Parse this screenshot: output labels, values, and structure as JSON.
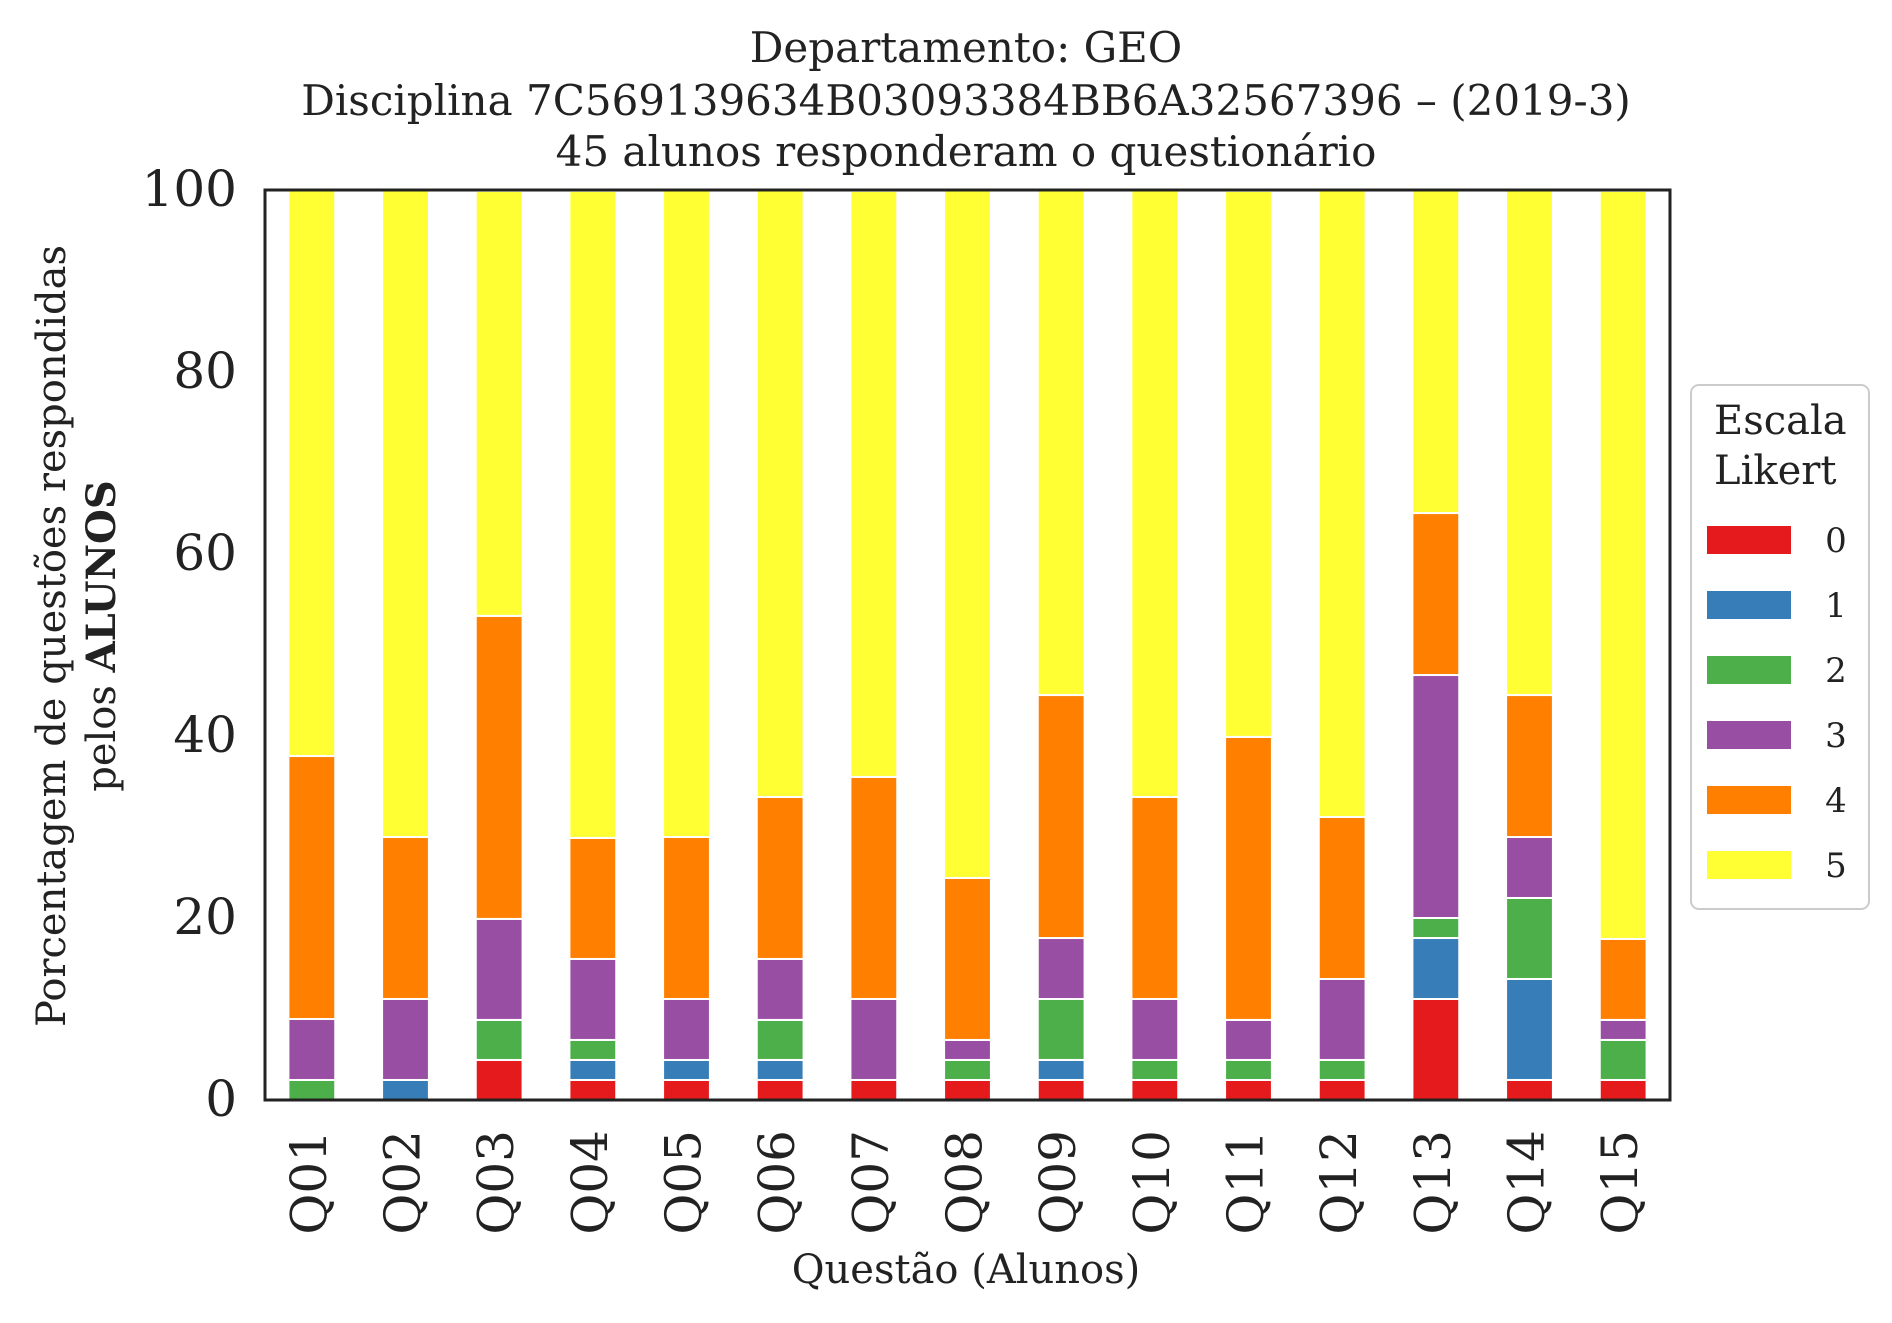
{
  "chart_data": {
    "type": "bar",
    "stacked": true,
    "title_lines": [
      "Departamento: GEO",
      "Disciplina 7C569139634B03093384BB6A32567396 – (2019-3)",
      "45 alunos responderam o questionário"
    ],
    "xlabel": "Questão (Alunos)",
    "ylabel_line1": "Porcentagem de questões respondidas",
    "ylabel_line2_prefix": "pelos ",
    "ylabel_line2_bold": "ALUNOS",
    "ylim": [
      0,
      100
    ],
    "yticks": [
      "0",
      "20",
      "40",
      "60",
      "80",
      "100"
    ],
    "categories": [
      "Q01",
      "Q02",
      "Q03",
      "Q04",
      "Q05",
      "Q06",
      "Q07",
      "Q08",
      "Q09",
      "Q10",
      "Q11",
      "Q12",
      "Q13",
      "Q14",
      "Q15"
    ],
    "legend": {
      "title_line1": "Escala",
      "title_line2": "Likert",
      "placement": "right"
    },
    "series": [
      {
        "name": "0",
        "color": "#e41a1c",
        "values": [
          0,
          0,
          4.4,
          2.2,
          2.2,
          2.2,
          2.2,
          2.2,
          2.2,
          2.2,
          2.2,
          2.2,
          11.1,
          2.2,
          2.2
        ]
      },
      {
        "name": "1",
        "color": "#377eb8",
        "values": [
          0,
          2.2,
          0,
          2.2,
          2.2,
          2.2,
          0,
          0,
          2.2,
          0,
          0,
          0,
          6.7,
          11.1,
          0
        ]
      },
      {
        "name": "2",
        "color": "#4daf4a",
        "values": [
          2.2,
          0,
          4.4,
          2.2,
          0,
          4.4,
          0,
          2.2,
          6.7,
          2.2,
          2.2,
          2.2,
          2.2,
          8.9,
          4.4
        ]
      },
      {
        "name": "3",
        "color": "#984ea3",
        "values": [
          6.7,
          8.9,
          11.1,
          8.9,
          6.7,
          6.7,
          8.9,
          2.2,
          6.7,
          6.7,
          4.4,
          8.9,
          26.7,
          6.7,
          2.2
        ]
      },
      {
        "name": "4",
        "color": "#ff7f00",
        "values": [
          28.9,
          17.8,
          33.3,
          13.3,
          17.8,
          17.8,
          24.4,
          17.8,
          26.7,
          22.2,
          31.1,
          17.8,
          17.8,
          15.6,
          8.9
        ]
      },
      {
        "name": "5",
        "color": "#ffff33",
        "values": [
          62.2,
          71.1,
          46.7,
          71.1,
          71.1,
          66.7,
          64.4,
          75.6,
          55.6,
          66.7,
          60.0,
          68.9,
          35.6,
          55.6,
          82.2
        ]
      }
    ]
  }
}
